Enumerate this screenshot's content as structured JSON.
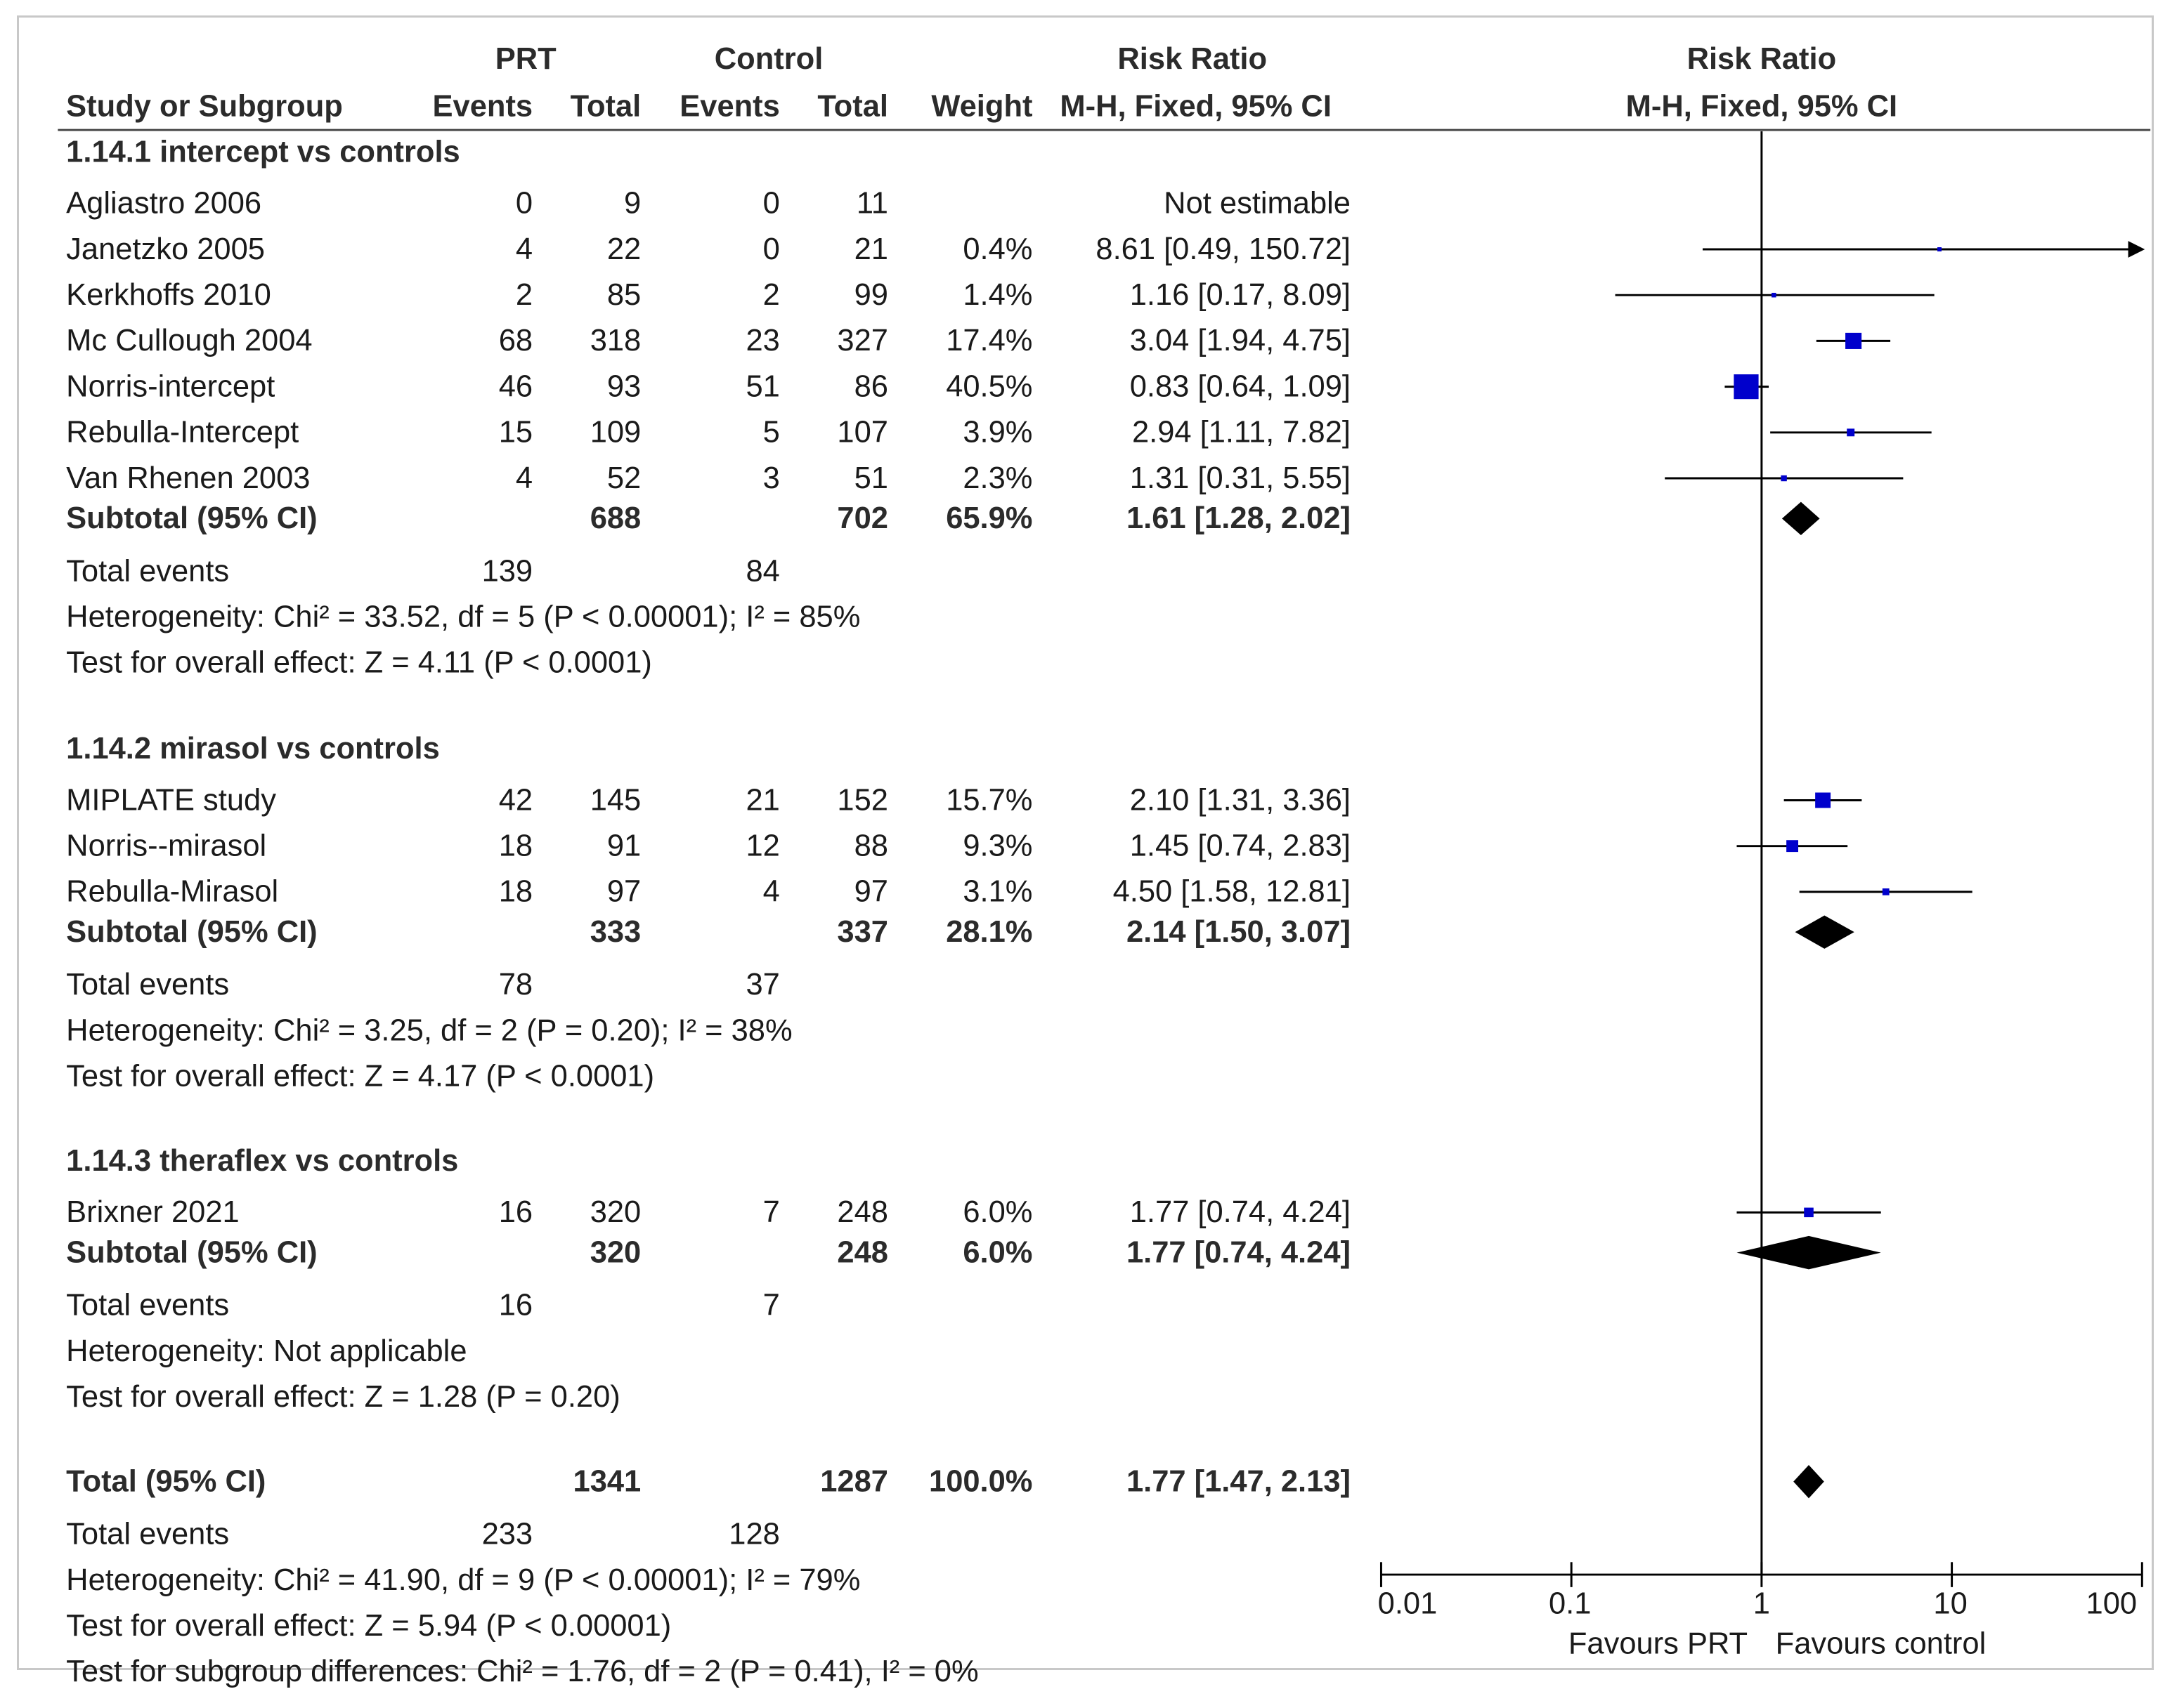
{
  "headers": {
    "prt": "PRT",
    "control": "Control",
    "risk_ratio": "Risk Ratio",
    "plot_title": "Risk Ratio",
    "study": "Study or Subgroup",
    "prt_events": "Events",
    "prt_total": "Total",
    "control_events": "Events",
    "control_total": "Total",
    "weight": "Weight",
    "method": "M-H, Fixed, 95% CI",
    "plot_method": "M-H, Fixed, 95% CI"
  },
  "subgroups": [
    {
      "title": "1.14.1 intercept vs controls",
      "studies": [
        {
          "name": "Agliastro 2006",
          "prt_events": "0",
          "prt_total": "9",
          "ctrl_events": "0",
          "ctrl_total": "11",
          "weight": "",
          "ci_text": "Not estimable"
        },
        {
          "name": "Janetzko 2005",
          "prt_events": "4",
          "prt_total": "22",
          "ctrl_events": "0",
          "ctrl_total": "21",
          "weight": "0.4%",
          "ci_text": "8.61 [0.49, 150.72]"
        },
        {
          "name": "Kerkhoffs 2010",
          "prt_events": "2",
          "prt_total": "85",
          "ctrl_events": "2",
          "ctrl_total": "99",
          "weight": "1.4%",
          "ci_text": "1.16 [0.17, 8.09]"
        },
        {
          "name": "Mc Cullough 2004",
          "prt_events": "68",
          "prt_total": "318",
          "ctrl_events": "23",
          "ctrl_total": "327",
          "weight": "17.4%",
          "ci_text": "3.04 [1.94, 4.75]"
        },
        {
          "name": "Norris-intercept",
          "prt_events": "46",
          "prt_total": "93",
          "ctrl_events": "51",
          "ctrl_total": "86",
          "weight": "40.5%",
          "ci_text": "0.83 [0.64, 1.09]"
        },
        {
          "name": "Rebulla-Intercept",
          "prt_events": "15",
          "prt_total": "109",
          "ctrl_events": "5",
          "ctrl_total": "107",
          "weight": "3.9%",
          "ci_text": "2.94 [1.11, 7.82]"
        },
        {
          "name": "Van Rhenen 2003",
          "prt_events": "4",
          "prt_total": "52",
          "ctrl_events": "3",
          "ctrl_total": "51",
          "weight": "2.3%",
          "ci_text": "1.31 [0.31, 5.55]"
        }
      ],
      "subtotal": {
        "label": "Subtotal (95% CI)",
        "prt_total": "688",
        "ctrl_total": "702",
        "weight": "65.9%",
        "ci_text": "1.61 [1.28, 2.02]"
      },
      "total_events": {
        "label": "Total events",
        "prt": "139",
        "ctrl": "84"
      },
      "heterogeneity": "Heterogeneity: Chi² = 33.52, df = 5 (P < 0.00001); I² = 85%",
      "overall_effect": "Test for overall effect: Z = 4.11 (P < 0.0001)"
    },
    {
      "title": "1.14.2 mirasol vs controls",
      "studies": [
        {
          "name": "MIPLATE study",
          "prt_events": "42",
          "prt_total": "145",
          "ctrl_events": "21",
          "ctrl_total": "152",
          "weight": "15.7%",
          "ci_text": "2.10 [1.31, 3.36]"
        },
        {
          "name": "Norris--mirasol",
          "prt_events": "18",
          "prt_total": "91",
          "ctrl_events": "12",
          "ctrl_total": "88",
          "weight": "9.3%",
          "ci_text": "1.45 [0.74, 2.83]"
        },
        {
          "name": "Rebulla-Mirasol",
          "prt_events": "18",
          "prt_total": "97",
          "ctrl_events": "4",
          "ctrl_total": "97",
          "weight": "3.1%",
          "ci_text": "4.50 [1.58, 12.81]"
        }
      ],
      "subtotal": {
        "label": "Subtotal (95% CI)",
        "prt_total": "333",
        "ctrl_total": "337",
        "weight": "28.1%",
        "ci_text": "2.14 [1.50, 3.07]"
      },
      "total_events": {
        "label": "Total events",
        "prt": "78",
        "ctrl": "37"
      },
      "heterogeneity": "Heterogeneity: Chi² = 3.25, df = 2 (P = 0.20); I² = 38%",
      "overall_effect": "Test for overall effect: Z = 4.17 (P < 0.0001)"
    },
    {
      "title": "1.14.3 theraflex vs controls",
      "studies": [
        {
          "name": "Brixner 2021",
          "prt_events": "16",
          "prt_total": "320",
          "ctrl_events": "7",
          "ctrl_total": "248",
          "weight": "6.0%",
          "ci_text": "1.77 [0.74, 4.24]"
        }
      ],
      "subtotal": {
        "label": "Subtotal (95% CI)",
        "prt_total": "320",
        "ctrl_total": "248",
        "weight": "6.0%",
        "ci_text": "1.77 [0.74, 4.24]"
      },
      "total_events": {
        "label": "Total events",
        "prt": "16",
        "ctrl": "7"
      },
      "heterogeneity": "Heterogeneity: Not applicable",
      "overall_effect": "Test for overall effect: Z = 1.28 (P = 0.20)"
    }
  ],
  "overall": {
    "label": "Total (95% CI)",
    "prt_total": "1341",
    "ctrl_total": "1287",
    "weight": "100.0%",
    "ci_text": "1.77 [1.47, 2.13]",
    "total_events": {
      "label": "Total events",
      "prt": "233",
      "ctrl": "128"
    },
    "heterogeneity": "Heterogeneity: Chi² = 41.90, df = 9 (P < 0.00001); I² = 79%",
    "overall_effect": "Test for overall effect: Z = 5.94 (P < 0.00001)",
    "subgroup_differences": "Test for subgroup differences: Chi² = 1.76, df = 2 (P = 0.41), I² = 0%"
  },
  "axis": {
    "ticks": [
      "0.01",
      "0.1",
      "1",
      "10",
      "100"
    ],
    "favours_left": "Favours PRT",
    "favours_right": "Favours control"
  },
  "colors": {
    "study_marker": "#0000cc",
    "diamond": "#000000",
    "line": "#000000",
    "text": "#1a1a1a"
  },
  "chart_data": {
    "type": "forest",
    "title": "Risk Ratio",
    "xlabel": "M-H, Fixed, 95% CI",
    "xscale": "log",
    "xlim": [
      0.01,
      100
    ],
    "null_value": 1,
    "studies": [
      {
        "subgroup": "1.14.1 intercept vs controls",
        "name": "Agliastro 2006",
        "rr": null,
        "lo": null,
        "hi": null,
        "weight": null
      },
      {
        "subgroup": "1.14.1 intercept vs controls",
        "name": "Janetzko 2005",
        "rr": 8.61,
        "lo": 0.49,
        "hi": 150.72,
        "weight": 0.4
      },
      {
        "subgroup": "1.14.1 intercept vs controls",
        "name": "Kerkhoffs 2010",
        "rr": 1.16,
        "lo": 0.17,
        "hi": 8.09,
        "weight": 1.4
      },
      {
        "subgroup": "1.14.1 intercept vs controls",
        "name": "Mc Cullough 2004",
        "rr": 3.04,
        "lo": 1.94,
        "hi": 4.75,
        "weight": 17.4
      },
      {
        "subgroup": "1.14.1 intercept vs controls",
        "name": "Norris-intercept",
        "rr": 0.83,
        "lo": 0.64,
        "hi": 1.09,
        "weight": 40.5
      },
      {
        "subgroup": "1.14.1 intercept vs controls",
        "name": "Rebulla-Intercept",
        "rr": 2.94,
        "lo": 1.11,
        "hi": 7.82,
        "weight": 3.9
      },
      {
        "subgroup": "1.14.1 intercept vs controls",
        "name": "Van Rhenen 2003",
        "rr": 1.31,
        "lo": 0.31,
        "hi": 5.55,
        "weight": 2.3
      },
      {
        "subgroup": "1.14.2 mirasol vs controls",
        "name": "MIPLATE study",
        "rr": 2.1,
        "lo": 1.31,
        "hi": 3.36,
        "weight": 15.7
      },
      {
        "subgroup": "1.14.2 mirasol vs controls",
        "name": "Norris--mirasol",
        "rr": 1.45,
        "lo": 0.74,
        "hi": 2.83,
        "weight": 9.3
      },
      {
        "subgroup": "1.14.2 mirasol vs controls",
        "name": "Rebulla-Mirasol",
        "rr": 4.5,
        "lo": 1.58,
        "hi": 12.81,
        "weight": 3.1
      },
      {
        "subgroup": "1.14.3 theraflex vs controls",
        "name": "Brixner 2021",
        "rr": 1.77,
        "lo": 0.74,
        "hi": 4.24,
        "weight": 6.0
      }
    ],
    "subtotals": [
      {
        "name": "1.14.1 intercept vs controls",
        "rr": 1.61,
        "lo": 1.28,
        "hi": 2.02
      },
      {
        "name": "1.14.2 mirasol vs controls",
        "rr": 2.14,
        "lo": 1.5,
        "hi": 3.07
      },
      {
        "name": "1.14.3 theraflex vs controls",
        "rr": 1.77,
        "lo": 0.74,
        "hi": 4.24
      }
    ],
    "total": {
      "rr": 1.77,
      "lo": 1.47,
      "hi": 2.13
    }
  }
}
